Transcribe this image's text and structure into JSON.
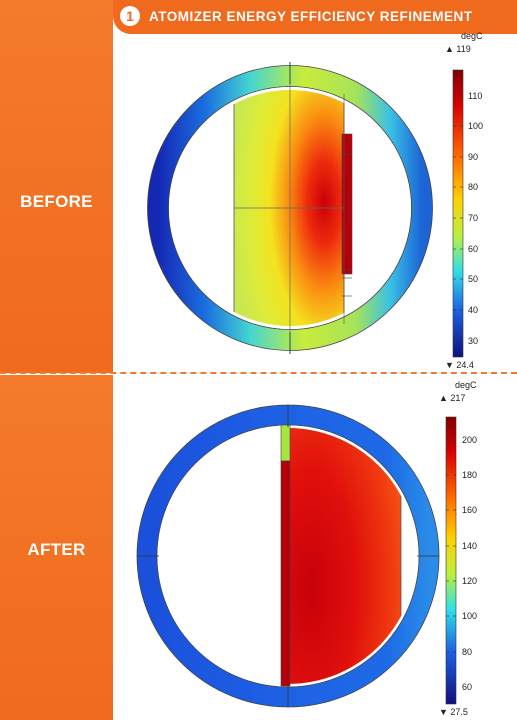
{
  "header": {
    "number": "1",
    "title": "ATOMIZER ENERGY EFFICIENCY REFINEMENT"
  },
  "labels": {
    "before": "BEFORE",
    "after": "AFTER"
  },
  "before": {
    "colorbar": {
      "unit": "degC",
      "max_label": "▲ 119",
      "min_label": "▼ 24.4",
      "min": 24.4,
      "max": 119,
      "ticks": [
        "110",
        "100",
        "90",
        "80",
        "70",
        "60",
        "50",
        "40",
        "30"
      ]
    }
  },
  "after": {
    "colorbar": {
      "unit": "degC",
      "max_label": "▲ 217",
      "min_label": "▼ 27.5",
      "min": 27.5,
      "max": 217,
      "ticks": [
        "200",
        "180",
        "160",
        "140",
        "120",
        "100",
        "80",
        "60"
      ]
    }
  },
  "colors": {
    "accent": "#f06a1e",
    "background": "#ffffff"
  }
}
